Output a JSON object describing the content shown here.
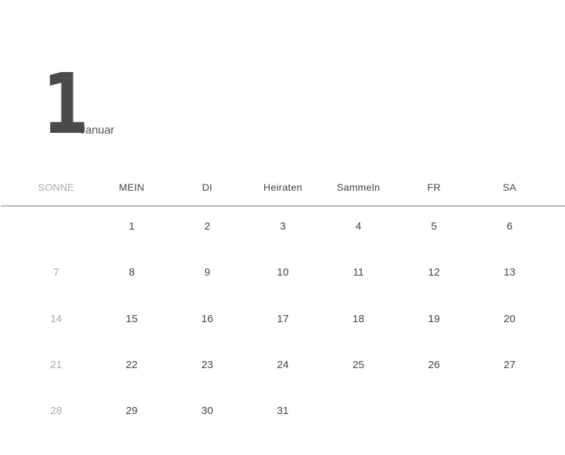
{
  "header": {
    "day_number": "1",
    "month": "Januar"
  },
  "weekdays": [
    "SONNE",
    "MEIN",
    "DI",
    "Heiraten",
    "Sammeln",
    "FR",
    "SA"
  ],
  "weeks": [
    [
      "",
      "1",
      "2",
      "3",
      "4",
      "5",
      "6"
    ],
    [
      "7",
      "8",
      "9",
      "10",
      "11",
      "12",
      "13"
    ],
    [
      "14",
      "15",
      "16",
      "17",
      "18",
      "19",
      "20"
    ],
    [
      "21",
      "22",
      "23",
      "24",
      "25",
      "26",
      "27"
    ],
    [
      "28",
      "29",
      "30",
      "31",
      "",
      "",
      ""
    ]
  ],
  "colors": {
    "text": "#444444",
    "sunday": "#aaaaaa",
    "rule": "#777777"
  }
}
